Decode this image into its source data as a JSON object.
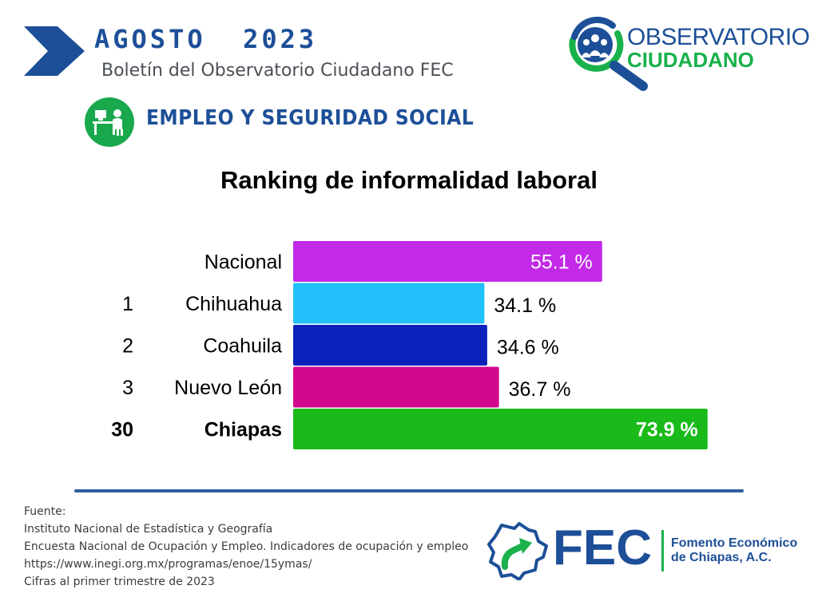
{
  "header": {
    "month": "AGOSTO  2023",
    "subtitle": "Boletín del Observatorio Ciudadano FEC",
    "colors": {
      "primary": "#1d4f98",
      "green": "#19a84c"
    }
  },
  "logo": {
    "line1": "OBSERVATORIO",
    "line2": "CIUDADANO",
    "icon": "magnifier-people-icon"
  },
  "section": {
    "title": "EMPLEO Y SEGURIDAD SOCIAL",
    "icon": "office-worker-icon"
  },
  "chart_title": "Ranking de informalidad laboral",
  "chart_data": {
    "type": "bar",
    "orientation": "horizontal",
    "title": "Ranking de informalidad laboral",
    "xlabel": "",
    "ylabel": "",
    "unit": "%",
    "xlim": [
      0,
      100
    ],
    "grid": false,
    "legend": "none",
    "ranks": [
      "",
      "1",
      "2",
      "3",
      "30"
    ],
    "categories": [
      "Nacional",
      "Chihuahua",
      "Coahuila",
      "Nuevo León",
      "Chiapas"
    ],
    "values": [
      55.1,
      34.1,
      34.6,
      36.7,
      73.9
    ],
    "value_labels": [
      "55.1 %",
      "34.1 %",
      "34.6 %",
      "36.7 %",
      "73.9 %"
    ],
    "colors": [
      "#c22ae8",
      "#22c0fa",
      "#0a21bc",
      "#d1088c",
      "#19ba19"
    ],
    "bold": [
      false,
      false,
      false,
      false,
      true
    ]
  },
  "source": {
    "lines": [
      "Fuente:",
      "Instituto Nacional de Estadística y Geografía",
      "Encuesta Nacional de Ocupación y Empleo. Indicadores de ocupación y empleo",
      "https://www.inegi.org.mx/programas/enoe/15ymas/",
      "Cifras al primer trimestre de 2023"
    ]
  },
  "fec_logo": {
    "abbr": "FEC",
    "name_line1": "Fomento Económico",
    "name_line2": "de Chiapas, A.C.",
    "icon": "chiapas-map-arrow-icon"
  }
}
